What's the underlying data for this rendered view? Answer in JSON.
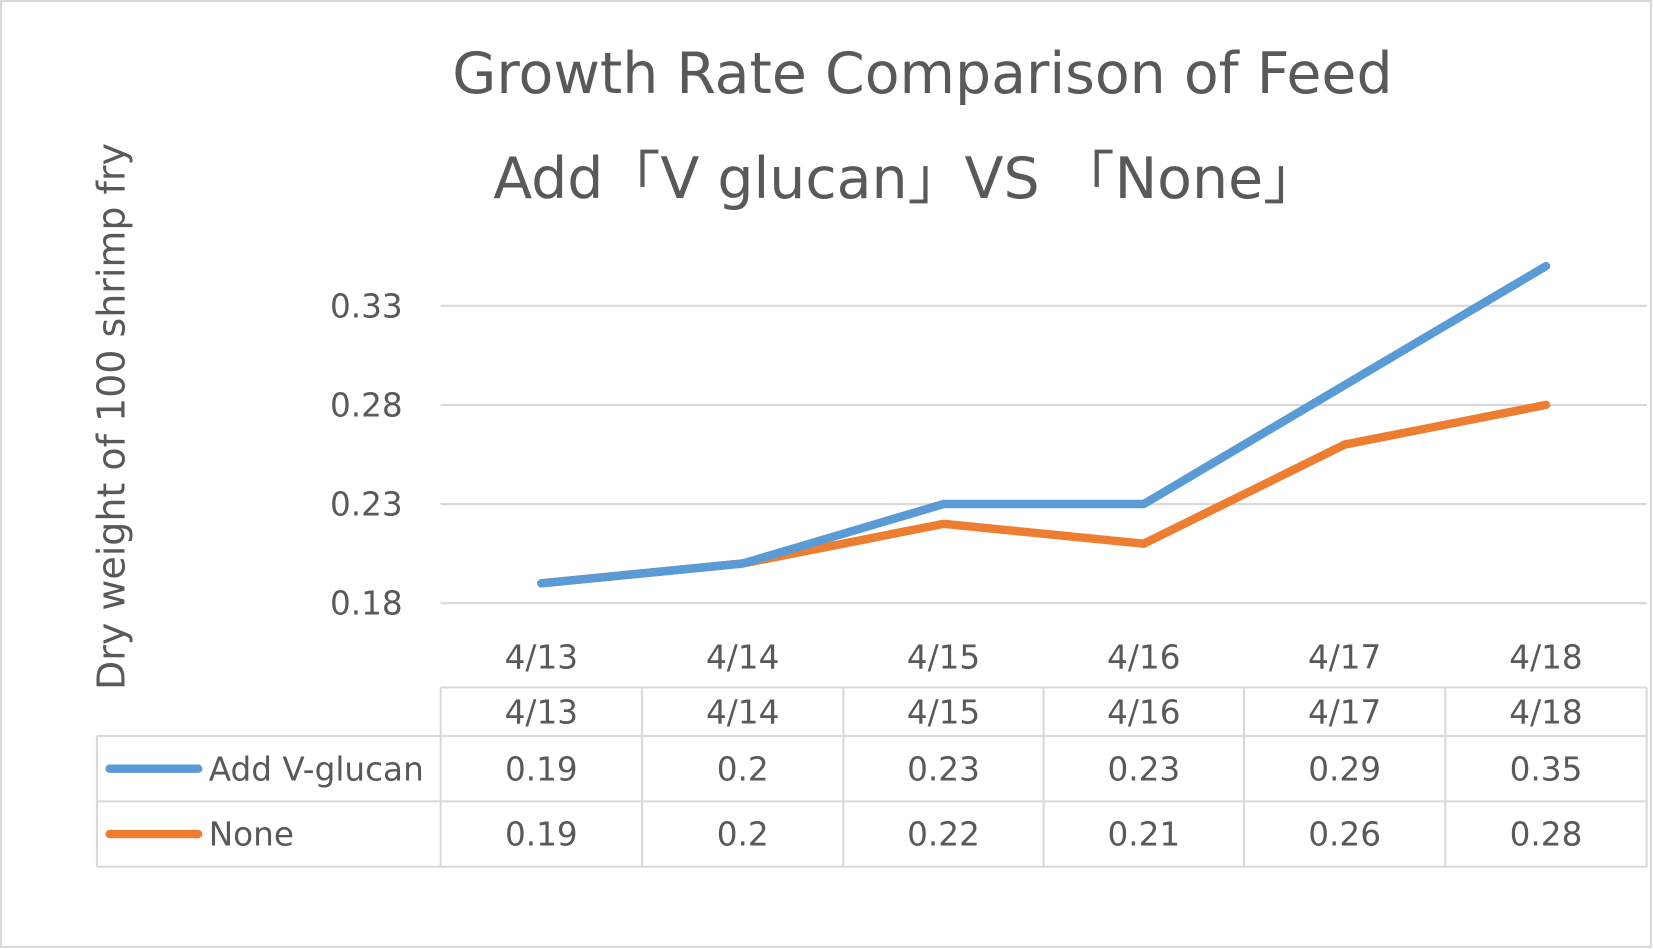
{
  "chart_data": {
    "type": "line",
    "title_line1": "Growth Rate Comparison of Feed",
    "title_line2": "Add「V glucan」VS 「None」",
    "ylabel": "Dry weight of 100 shrimp fry",
    "xlabel": "",
    "categories": [
      "4/13",
      "4/14",
      "4/15",
      "4/16",
      "4/17",
      "4/18"
    ],
    "yticks": [
      "0.18",
      "0.23",
      "0.28",
      "0.33"
    ],
    "ylim": [
      0.18,
      0.33
    ],
    "grid": true,
    "legend": "data-table",
    "series": [
      {
        "name": "Add V-glucan",
        "color": "#5B9BD5",
        "values": [
          0.19,
          0.2,
          0.23,
          0.23,
          0.29,
          0.35
        ],
        "labels": [
          "0.19",
          "0.2",
          "0.23",
          "0.23",
          "0.29",
          "0.35"
        ]
      },
      {
        "name": "None",
        "color": "#ED7D31",
        "values": [
          0.19,
          0.2,
          0.22,
          0.21,
          0.26,
          0.28
        ],
        "labels": [
          "0.19",
          "0.2",
          "0.22",
          "0.21",
          "0.26",
          "0.28"
        ]
      }
    ]
  }
}
